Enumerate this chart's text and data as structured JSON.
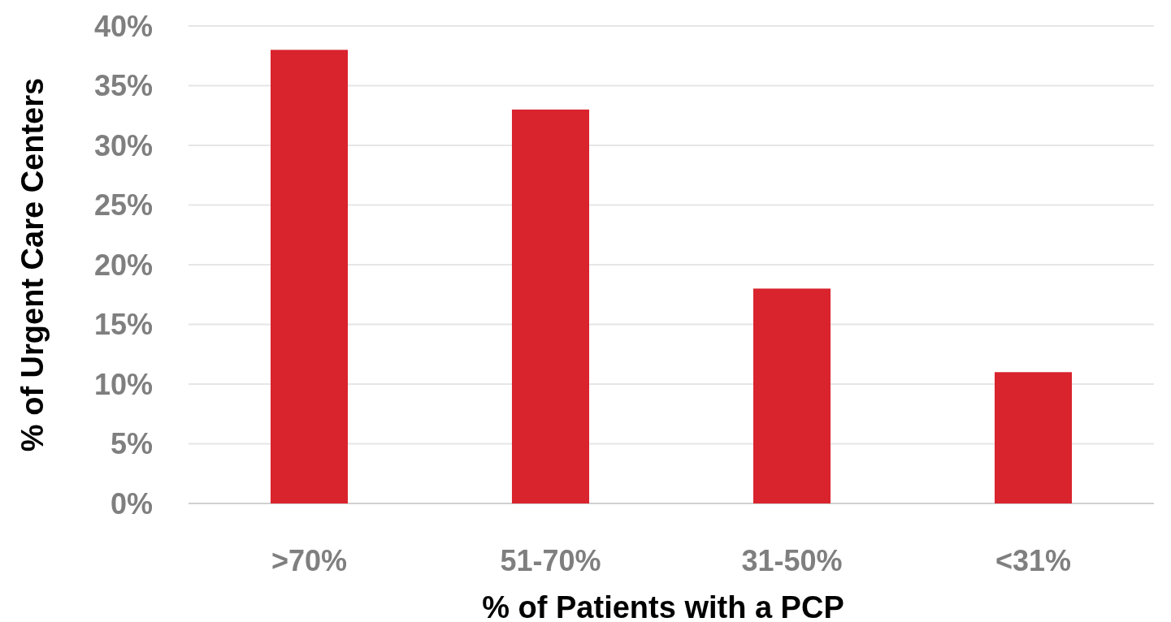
{
  "chart_data": {
    "type": "bar",
    "xlabel": "% of Patients with a PCP",
    "ylabel": "% of Urgent Care Centers",
    "categories": [
      ">70%",
      "51-70%",
      "31-50%",
      "<31%"
    ],
    "values": [
      38,
      33,
      18,
      11
    ],
    "color": "#d9232d",
    "ylim": [
      0,
      40
    ],
    "yticks": [
      {
        "value": 0,
        "label": "0%"
      },
      {
        "value": 5,
        "label": "5%"
      },
      {
        "value": 10,
        "label": "10%"
      },
      {
        "value": 15,
        "label": "15%"
      },
      {
        "value": 20,
        "label": "20%"
      },
      {
        "value": 25,
        "label": "25%"
      },
      {
        "value": 30,
        "label": "30%"
      },
      {
        "value": 35,
        "label": "35%"
      },
      {
        "value": 40,
        "label": "40%"
      }
    ],
    "grid": "y"
  }
}
